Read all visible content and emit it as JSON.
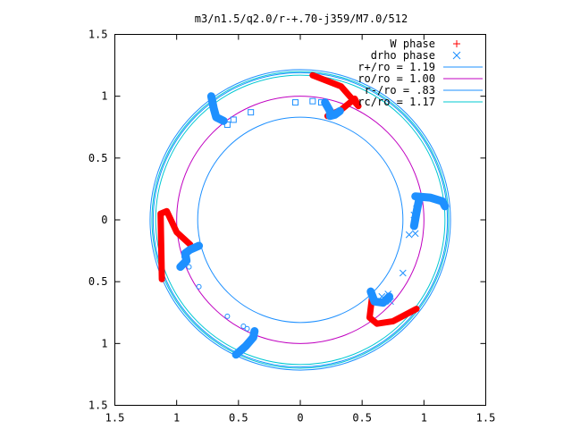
{
  "chart_data": {
    "type": "scatter",
    "title": "m3/n1.5/q2.0/r-+.70-j359/M7.0/512",
    "xlim": [
      -1.5,
      1.5
    ],
    "ylim": [
      -1.5,
      1.5
    ],
    "x_ticks": [
      "1.5",
      "1",
      "0.5",
      "0",
      "0.5",
      "1",
      "1.5"
    ],
    "y_ticks": [
      "1.5",
      "1",
      "0.5",
      "0",
      "0.5",
      "1",
      "1.5"
    ],
    "tick_values": [
      -1.5,
      -1,
      -0.5,
      0,
      0.5,
      1,
      1.5
    ],
    "grid": false,
    "legend_position": "top-right",
    "legend": [
      {
        "label": "W phase",
        "kind": "point",
        "symbol": "+",
        "color": "#ff0000"
      },
      {
        "label": "drho phase",
        "kind": "point",
        "symbol": "x",
        "color": "#1e90ff"
      },
      {
        "label": "r+/ro = 1.19",
        "kind": "line",
        "color": "#1e90ff"
      },
      {
        "label": "ro/ro = 1.00",
        "kind": "line",
        "color": "#c000c0"
      },
      {
        "label": "r-/ro = .83",
        "kind": "line",
        "color": "#1e90ff"
      },
      {
        "label": "rc/ro = 1.17",
        "kind": "line",
        "color": "#00c8d2"
      }
    ],
    "circles": [
      {
        "name": "r+/ro = 1.19",
        "r": 1.19,
        "color": "#1e90ff"
      },
      {
        "name": "r+/ro = 1.19 (second trace)",
        "r": 1.215,
        "color": "#1e90ff"
      },
      {
        "name": "ro/ro = 1.00",
        "r": 1.0,
        "color": "#c000c0"
      },
      {
        "name": "r-/ro = .83",
        "r": 0.83,
        "color": "#1e90ff"
      },
      {
        "name": "rc/ro = 1.17",
        "r": 1.17,
        "color": "#00c8d2"
      },
      {
        "name": "rc/ro = 1.17 (second trace)",
        "r": 1.2,
        "color": "#00c8d2"
      }
    ],
    "red_arcs": [
      {
        "name": "W phase arm upper-right",
        "color": "#ff0000",
        "points": [
          [
            0.1,
            1.17
          ],
          [
            0.33,
            1.08
          ],
          [
            0.47,
            0.92
          ],
          [
            0.44,
            0.98
          ],
          [
            0.33,
            0.89
          ],
          [
            0.22,
            0.84
          ]
        ]
      },
      {
        "name": "W phase arm left",
        "color": "#ff0000",
        "points": [
          [
            -1.12,
            -0.48
          ],
          [
            -1.13,
            0.05
          ],
          [
            -1.08,
            0.07
          ],
          [
            -1.0,
            -0.1
          ],
          [
            -0.89,
            -0.2
          ]
        ]
      },
      {
        "name": "W phase arm lower-right",
        "color": "#ff0000",
        "points": [
          [
            0.94,
            -0.72
          ],
          [
            0.75,
            -0.82
          ],
          [
            0.62,
            -0.84
          ],
          [
            0.56,
            -0.79
          ],
          [
            0.58,
            -0.63
          ]
        ]
      }
    ],
    "blue_arcs": [
      {
        "name": "drho phase arm upper-left",
        "color": "#1e90ff",
        "points": [
          [
            -0.72,
            1.0
          ],
          [
            -0.7,
            0.9
          ],
          [
            -0.68,
            0.83
          ],
          [
            -0.62,
            0.8
          ]
        ]
      },
      {
        "name": "drho phase arm upper-right",
        "color": "#1e90ff",
        "points": [
          [
            0.2,
            0.95
          ],
          [
            0.24,
            0.88
          ],
          [
            0.24,
            0.84
          ],
          [
            0.28,
            0.85
          ],
          [
            0.32,
            0.88
          ]
        ]
      },
      {
        "name": "drho phase arm right",
        "color": "#1e90ff",
        "points": [
          [
            0.93,
            0.19
          ],
          [
            1.05,
            0.18
          ],
          [
            1.15,
            0.15
          ],
          [
            1.17,
            0.11
          ]
        ]
      },
      {
        "name": "drho phase arm right lower stub",
        "color": "#1e90ff",
        "points": [
          [
            0.96,
            0.16
          ],
          [
            0.94,
            0.06
          ],
          [
            0.92,
            -0.05
          ]
        ]
      },
      {
        "name": "drho phase arm left",
        "color": "#1e90ff",
        "points": [
          [
            -0.82,
            -0.21
          ],
          [
            -0.89,
            -0.24
          ],
          [
            -0.93,
            -0.27
          ],
          [
            -0.92,
            -0.33
          ],
          [
            -0.97,
            -0.38
          ]
        ]
      },
      {
        "name": "drho phase arm lower-right",
        "color": "#1e90ff",
        "points": [
          [
            0.57,
            -0.58
          ],
          [
            0.6,
            -0.66
          ],
          [
            0.67,
            -0.67
          ],
          [
            0.72,
            -0.62
          ]
        ]
      },
      {
        "name": "drho phase arm bottom",
        "color": "#1e90ff",
        "points": [
          [
            -0.52,
            -1.09
          ],
          [
            -0.44,
            -1.02
          ],
          [
            -0.38,
            -0.95
          ],
          [
            -0.37,
            -0.9
          ]
        ]
      }
    ],
    "scatter_x_blue": [
      [
        0.88,
        -0.12
      ],
      [
        0.93,
        -0.11
      ],
      [
        0.92,
        0.04
      ],
      [
        0.94,
        0.09
      ],
      [
        0.83,
        -0.43
      ],
      [
        0.71,
        -0.6
      ],
      [
        0.66,
        -0.62
      ],
      [
        0.73,
        -0.66
      ]
    ],
    "scatter_square_blue": [
      [
        -0.04,
        0.95
      ],
      [
        0.1,
        0.96
      ],
      [
        0.17,
        0.95
      ],
      [
        -0.4,
        0.87
      ],
      [
        -0.54,
        0.81
      ],
      [
        -0.59,
        0.77
      ]
    ],
    "scatter_circle_blue": [
      [
        -0.94,
        -0.3
      ],
      [
        -0.9,
        -0.38
      ],
      [
        -0.82,
        -0.54
      ],
      [
        -0.59,
        -0.78
      ],
      [
        -0.46,
        -0.86
      ],
      [
        -0.43,
        -0.88
      ]
    ]
  }
}
